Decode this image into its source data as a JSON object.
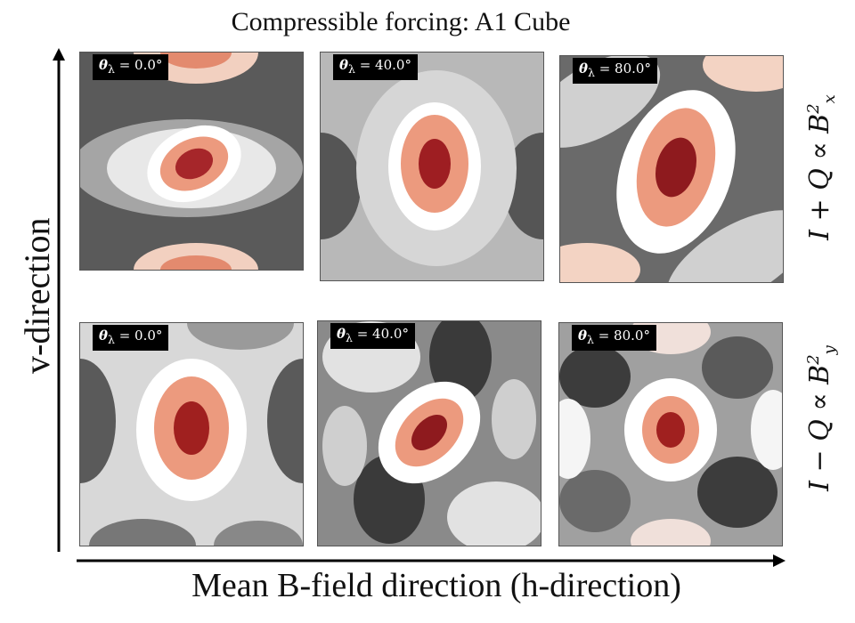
{
  "title": "Compressible forcing: A1 Cube",
  "ylabel": "v-direction",
  "xlabel": "Mean B-field direction (h-direction)",
  "row_labels": [
    {
      "main": "I + Q ∝ B",
      "sup": "2",
      "sub": "x"
    },
    {
      "main": "I − Q ∝ B",
      "sup": "2",
      "sub": "y"
    }
  ],
  "panel_tags": [
    {
      "prefix": "θ",
      "sub": "λ",
      "value": " = 0.0°"
    },
    {
      "prefix": "θ",
      "sub": "λ",
      "value": " = 40.0°"
    },
    {
      "prefix": "θ",
      "sub": "λ",
      "value": " = 80.0°"
    },
    {
      "prefix": "θ",
      "sub": "λ",
      "value": " = 0.0°"
    },
    {
      "prefix": "θ",
      "sub": "λ",
      "value": " = 40.0°"
    },
    {
      "prefix": "θ",
      "sub": "λ",
      "value": " = 80.0°"
    }
  ],
  "colors": {
    "peak": "#8b1a1a",
    "mid": "#e8866a",
    "white": "#ffffff",
    "dark": "#2a2a2a",
    "grey": "#9a9a9a"
  }
}
